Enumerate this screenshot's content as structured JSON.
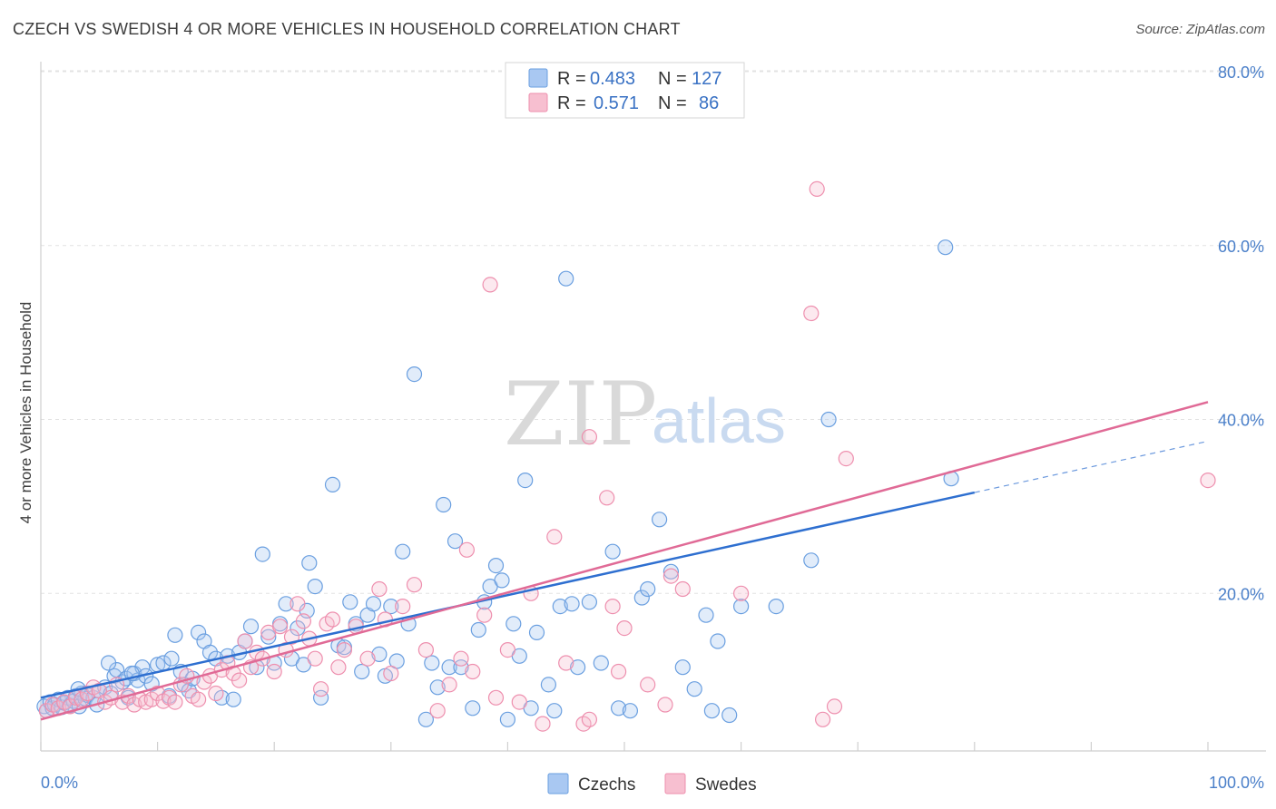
{
  "header": {
    "title": "CZECH VS SWEDISH 4 OR MORE VEHICLES IN HOUSEHOLD CORRELATION CHART",
    "source": "Source: ZipAtlas.com"
  },
  "watermark": {
    "zip": "ZIP",
    "atlas": "atlas"
  },
  "legend": {
    "rows": [
      {
        "r_label": "R =",
        "r_value": "0.483",
        "n_label": "N =",
        "n_value": "127",
        "color": "#a9c8f2"
      },
      {
        "r_label": "R =",
        "r_value": "0.571",
        "n_label": "N =",
        "n_value": "86",
        "color": "#f7bfd0"
      }
    ]
  },
  "bottom_legend": [
    "Czechs",
    "Swedes"
  ],
  "chart_data": {
    "type": "scatter",
    "title": "CZECH VS SWEDISH 4 OR MORE VEHICLES IN HOUSEHOLD CORRELATION CHART",
    "xlabel": "",
    "ylabel": "4 or more Vehicles in Household",
    "xlim": [
      0,
      100
    ],
    "ylim": [
      0,
      85
    ],
    "x_tick_labels": [
      "0.0%",
      "100.0%"
    ],
    "y_ticks": [
      20,
      40,
      60,
      80
    ],
    "y_tick_labels": [
      "20.0%",
      "40.0%",
      "60.0%",
      "80.0%"
    ],
    "grid": true,
    "legend_position": "top-center",
    "colors": {
      "Czechs": "#6a9fe0",
      "Swedes": "#ee8fae",
      "czech_line": "#2e6fd0",
      "swede_line": "#e06a96"
    },
    "series": [
      {
        "name": "Czechs",
        "trend": {
          "x": [
            0,
            100
          ],
          "y": [
            8.0,
            37.5
          ],
          "solid_until_x": 80
        },
        "points": [
          [
            0.3,
            7.0
          ],
          [
            0.5,
            6.5
          ],
          [
            0.8,
            7.5
          ],
          [
            1.0,
            6.8
          ],
          [
            1.2,
            7.2
          ],
          [
            1.5,
            7.8
          ],
          [
            1.8,
            6.9
          ],
          [
            2.0,
            7.4
          ],
          [
            2.3,
            8.0
          ],
          [
            2.5,
            7.1
          ],
          [
            2.8,
            7.6
          ],
          [
            3.0,
            8.2
          ],
          [
            3.3,
            7.0
          ],
          [
            3.5,
            8.5
          ],
          [
            3.8,
            7.9
          ],
          [
            4.0,
            8.3
          ],
          [
            4.5,
            8.0
          ],
          [
            4.8,
            7.2
          ],
          [
            5.0,
            8.8
          ],
          [
            5.5,
            9.2
          ],
          [
            6.0,
            8.5
          ],
          [
            6.3,
            10.5
          ],
          [
            6.5,
            11.2
          ],
          [
            7.0,
            9.8
          ],
          [
            7.3,
            10.2
          ],
          [
            7.5,
            8.0
          ],
          [
            8.0,
            10.8
          ],
          [
            8.3,
            10.0
          ],
          [
            8.7,
            11.5
          ],
          [
            9.0,
            10.5
          ],
          [
            9.5,
            9.6
          ],
          [
            10.0,
            11.8
          ],
          [
            10.5,
            12.0
          ],
          [
            11.0,
            8.2
          ],
          [
            11.5,
            15.2
          ],
          [
            12.0,
            11.0
          ],
          [
            12.3,
            9.5
          ],
          [
            12.7,
            8.8
          ],
          [
            13.0,
            10.2
          ],
          [
            13.5,
            15.5
          ],
          [
            14.0,
            14.5
          ],
          [
            14.5,
            13.2
          ],
          [
            15.0,
            12.5
          ],
          [
            15.5,
            8.0
          ],
          [
            16.0,
            12.8
          ],
          [
            16.5,
            7.8
          ],
          [
            17.0,
            13.2
          ],
          [
            17.5,
            14.5
          ],
          [
            18.0,
            16.2
          ],
          [
            18.5,
            11.5
          ],
          [
            19.0,
            24.5
          ],
          [
            19.5,
            15.0
          ],
          [
            20.0,
            12.0
          ],
          [
            20.5,
            16.5
          ],
          [
            21.0,
            18.8
          ],
          [
            21.5,
            12.5
          ],
          [
            22.0,
            16.0
          ],
          [
            22.5,
            11.8
          ],
          [
            23.0,
            23.5
          ],
          [
            23.5,
            20.8
          ],
          [
            24.0,
            8.0
          ],
          [
            25.0,
            32.5
          ],
          [
            25.5,
            14.0
          ],
          [
            26.0,
            13.8
          ],
          [
            26.5,
            19.0
          ],
          [
            27.0,
            16.5
          ],
          [
            27.5,
            11.0
          ],
          [
            28.0,
            17.5
          ],
          [
            28.5,
            18.8
          ],
          [
            29.0,
            13.0
          ],
          [
            29.5,
            10.5
          ],
          [
            30.0,
            18.5
          ],
          [
            30.5,
            12.2
          ],
          [
            31.0,
            24.8
          ],
          [
            31.5,
            16.5
          ],
          [
            32.0,
            45.2
          ],
          [
            33.0,
            5.5
          ],
          [
            33.5,
            12.0
          ],
          [
            34.0,
            9.2
          ],
          [
            34.5,
            30.2
          ],
          [
            35.0,
            11.5
          ],
          [
            35.5,
            26.0
          ],
          [
            36.0,
            11.5
          ],
          [
            37.0,
            6.8
          ],
          [
            37.5,
            15.8
          ],
          [
            38.0,
            19.0
          ],
          [
            38.5,
            20.8
          ],
          [
            39.0,
            23.2
          ],
          [
            39.5,
            21.5
          ],
          [
            40.0,
            5.5
          ],
          [
            40.5,
            16.5
          ],
          [
            41.0,
            12.8
          ],
          [
            41.5,
            33.0
          ],
          [
            42.0,
            6.8
          ],
          [
            42.5,
            15.5
          ],
          [
            43.5,
            9.5
          ],
          [
            44.0,
            6.5
          ],
          [
            44.5,
            18.5
          ],
          [
            45.0,
            56.2
          ],
          [
            45.5,
            18.8
          ],
          [
            46.0,
            11.5
          ],
          [
            47.0,
            19.0
          ],
          [
            48.0,
            12.0
          ],
          [
            49.0,
            24.8
          ],
          [
            49.5,
            6.8
          ],
          [
            50.5,
            6.5
          ],
          [
            51.5,
            19.5
          ],
          [
            52.0,
            20.5
          ],
          [
            53.0,
            28.5
          ],
          [
            54.0,
            22.5
          ],
          [
            55.0,
            11.5
          ],
          [
            56.0,
            9.0
          ],
          [
            57.0,
            17.5
          ],
          [
            57.5,
            6.5
          ],
          [
            58.0,
            14.5
          ],
          [
            59.0,
            6.0
          ],
          [
            60.0,
            18.5
          ],
          [
            63.0,
            18.5
          ],
          [
            66.0,
            23.8
          ],
          [
            67.5,
            40.0
          ],
          [
            77.5,
            59.8
          ],
          [
            78.0,
            33.2
          ],
          [
            3.2,
            9.0
          ],
          [
            5.8,
            12.0
          ],
          [
            11.2,
            12.5
          ],
          [
            7.8,
            10.8
          ],
          [
            22.8,
            18.0
          ]
        ]
      },
      {
        "name": "Swedes",
        "trend": {
          "x": [
            0,
            100
          ],
          "y": [
            5.5,
            42.0
          ]
        },
        "points": [
          [
            0.5,
            6.5
          ],
          [
            1.0,
            7.2
          ],
          [
            1.5,
            6.8
          ],
          [
            2.0,
            7.5
          ],
          [
            2.5,
            7.0
          ],
          [
            3.0,
            8.0
          ],
          [
            3.5,
            7.8
          ],
          [
            4.0,
            8.5
          ],
          [
            4.5,
            9.2
          ],
          [
            5.0,
            8.8
          ],
          [
            5.5,
            7.5
          ],
          [
            6.0,
            8.0
          ],
          [
            6.5,
            9.5
          ],
          [
            7.0,
            7.5
          ],
          [
            7.5,
            8.2
          ],
          [
            8.0,
            7.2
          ],
          [
            8.5,
            7.8
          ],
          [
            9.0,
            7.5
          ],
          [
            9.5,
            7.8
          ],
          [
            10.0,
            8.5
          ],
          [
            10.5,
            7.6
          ],
          [
            11.0,
            8.0
          ],
          [
            11.5,
            7.5
          ],
          [
            12.0,
            9.5
          ],
          [
            12.5,
            10.5
          ],
          [
            13.0,
            8.2
          ],
          [
            13.5,
            7.8
          ],
          [
            14.0,
            9.8
          ],
          [
            14.5,
            10.5
          ],
          [
            15.0,
            8.5
          ],
          [
            15.5,
            11.2
          ],
          [
            16.0,
            12.0
          ],
          [
            16.5,
            10.8
          ],
          [
            17.0,
            10.0
          ],
          [
            17.5,
            14.5
          ],
          [
            18.0,
            11.5
          ],
          [
            18.5,
            13.2
          ],
          [
            19.0,
            12.5
          ],
          [
            19.5,
            15.5
          ],
          [
            20.0,
            11.0
          ],
          [
            20.5,
            16.2
          ],
          [
            21.0,
            13.5
          ],
          [
            21.5,
            15.0
          ],
          [
            22.0,
            18.8
          ],
          [
            22.5,
            16.8
          ],
          [
            23.0,
            14.8
          ],
          [
            23.5,
            12.5
          ],
          [
            24.0,
            9.0
          ],
          [
            24.5,
            16.5
          ],
          [
            25.0,
            17.0
          ],
          [
            25.5,
            11.5
          ],
          [
            26.0,
            13.5
          ],
          [
            27.0,
            16.2
          ],
          [
            28.0,
            12.5
          ],
          [
            29.0,
            20.5
          ],
          [
            29.5,
            17.0
          ],
          [
            30.0,
            10.8
          ],
          [
            31.0,
            18.5
          ],
          [
            32.0,
            21.0
          ],
          [
            33.0,
            13.5
          ],
          [
            34.0,
            6.5
          ],
          [
            35.0,
            9.5
          ],
          [
            36.0,
            12.5
          ],
          [
            36.5,
            25.0
          ],
          [
            37.0,
            11.0
          ],
          [
            38.0,
            17.5
          ],
          [
            38.5,
            55.5
          ],
          [
            39.0,
            8.0
          ],
          [
            40.0,
            13.5
          ],
          [
            41.0,
            7.5
          ],
          [
            42.0,
            20.0
          ],
          [
            43.0,
            5.0
          ],
          [
            44.0,
            26.5
          ],
          [
            45.0,
            12.0
          ],
          [
            47.0,
            38.0
          ],
          [
            48.5,
            31.0
          ],
          [
            49.0,
            18.5
          ],
          [
            50.0,
            16.0
          ],
          [
            52.0,
            9.5
          ],
          [
            54.0,
            22.0
          ],
          [
            55.0,
            20.5
          ],
          [
            60.0,
            20.0
          ],
          [
            66.0,
            52.2
          ],
          [
            67.0,
            5.5
          ],
          [
            68.0,
            7.0
          ],
          [
            69.0,
            35.5
          ]
        ]
      }
    ],
    "extra_points": {
      "Swedes": [
        [
          66.5,
          66.5
        ],
        [
          100,
          33.0
        ],
        [
          49.5,
          11.0
        ],
        [
          46.5,
          5.0
        ],
        [
          47.0,
          5.5
        ],
        [
          53.5,
          7.2
        ]
      ]
    }
  }
}
